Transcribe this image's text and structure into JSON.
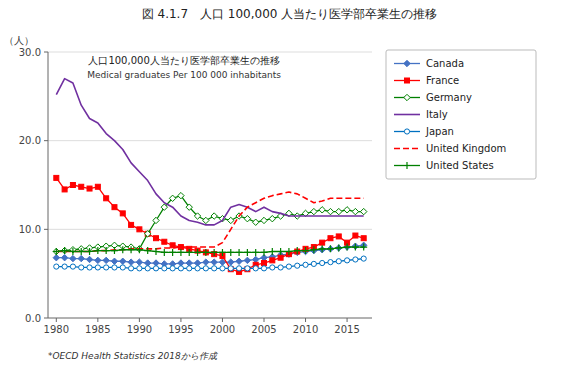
{
  "chart_data": {
    "type": "line",
    "title": "図 4.1.7　人口 100,000 人当たり医学部卒業生の推移",
    "subtitle": "人口100,000人当たり医学部卒業生の推移",
    "annotations": [
      "Medical graduates  Per 100 000 inhabitants",
      "*OECD Health Statistics 2018から作成"
    ],
    "y_label": "（人）",
    "xlim": [
      1979,
      2018
    ],
    "xticks": [
      1980,
      1985,
      1990,
      1995,
      2000,
      2005,
      2010,
      2015
    ],
    "ylim": [
      0,
      30
    ],
    "yticks": [
      {
        "value": 0,
        "label": "0.0"
      },
      {
        "value": 10,
        "label": "10.0"
      },
      {
        "value": 20,
        "label": "20.0"
      },
      {
        "value": 30,
        "label": "30.0"
      }
    ],
    "grid": true,
    "legend": "right",
    "x": [
      1980,
      1981,
      1982,
      1983,
      1984,
      1985,
      1986,
      1987,
      1988,
      1989,
      1990,
      1991,
      1992,
      1993,
      1994,
      1995,
      1996,
      1997,
      1998,
      1999,
      2000,
      2001,
      2002,
      2003,
      2004,
      2005,
      2006,
      2007,
      2008,
      2009,
      2010,
      2011,
      2012,
      2013,
      2014,
      2015,
      2016,
      2017
    ],
    "series": [
      {
        "name": "Canada",
        "color": "#4472c4",
        "marker": "diamond",
        "line_style": "solid",
        "values": [
          6.8,
          6.8,
          6.7,
          6.7,
          6.6,
          6.5,
          6.5,
          6.4,
          6.4,
          6.3,
          6.3,
          6.2,
          6.2,
          6.1,
          6.1,
          6.2,
          6.2,
          6.2,
          6.3,
          6.3,
          6.3,
          6.3,
          6.4,
          6.5,
          6.6,
          6.8,
          6.9,
          7.1,
          7.2,
          7.4,
          7.5,
          7.6,
          7.7,
          7.8,
          7.9,
          8.0,
          8.1,
          8.2
        ]
      },
      {
        "name": "France",
        "color": "#ff0000",
        "marker": "square",
        "line_style": "solid",
        "values": [
          15.8,
          14.5,
          15.0,
          14.8,
          14.6,
          14.8,
          13.5,
          12.5,
          11.8,
          10.5,
          10.0,
          9.5,
          9.0,
          8.6,
          8.2,
          8.0,
          7.8,
          7.6,
          7.4,
          7.2,
          7.0,
          5.5,
          5.2,
          5.5,
          6.0,
          6.2,
          6.5,
          6.8,
          7.2,
          7.5,
          7.8,
          8.0,
          8.5,
          9.0,
          9.2,
          8.5,
          9.3,
          9.0
        ]
      },
      {
        "name": "Germany",
        "color": "#008000",
        "marker": "open-diamond",
        "line_style": "solid",
        "values": [
          7.5,
          7.6,
          7.7,
          7.8,
          7.9,
          8.0,
          8.1,
          8.2,
          8.1,
          8.0,
          7.8,
          9.5,
          11.0,
          12.5,
          13.5,
          13.8,
          12.5,
          11.5,
          11.0,
          11.5,
          11.2,
          11.0,
          11.5,
          11.2,
          10.8,
          11.0,
          11.2,
          11.5,
          11.8,
          11.5,
          11.8,
          12.0,
          12.2,
          12.0,
          12.0,
          12.2,
          12.0,
          12.0
        ]
      },
      {
        "name": "Italy",
        "color": "#7030a0",
        "marker": "none",
        "line_style": "solid",
        "values": [
          25.2,
          27.0,
          26.5,
          24.0,
          22.5,
          22.0,
          20.8,
          20.0,
          19.0,
          17.5,
          16.5,
          15.5,
          14.0,
          13.0,
          12.5,
          11.5,
          11.0,
          10.8,
          10.5,
          10.5,
          11.0,
          12.5,
          12.8,
          12.5,
          12.0,
          12.5,
          12.0,
          11.8,
          11.5,
          11.5,
          11.5,
          11.5,
          11.5,
          11.5,
          11.5,
          11.5,
          11.5,
          11.5
        ]
      },
      {
        "name": "Japan",
        "color": "#0070c0",
        "marker": "open-circle",
        "line_style": "solid",
        "values": [
          5.8,
          5.8,
          5.8,
          5.7,
          5.7,
          5.7,
          5.7,
          5.7,
          5.7,
          5.6,
          5.6,
          5.6,
          5.6,
          5.6,
          5.6,
          5.6,
          5.6,
          5.6,
          5.6,
          5.6,
          5.6,
          5.6,
          5.6,
          5.6,
          5.6,
          5.6,
          5.7,
          5.7,
          5.8,
          5.9,
          6.0,
          6.1,
          6.2,
          6.3,
          6.4,
          6.5,
          6.6,
          6.7
        ]
      },
      {
        "name": "United Kingdom",
        "color": "#ff0000",
        "marker": "none",
        "line_style": "dashed",
        "values": [
          7.5,
          7.5,
          7.5,
          7.5,
          7.5,
          7.6,
          7.6,
          7.7,
          7.7,
          7.8,
          7.8,
          7.8,
          7.8,
          7.9,
          7.9,
          8.0,
          8.0,
          8.0,
          8.0,
          8.0,
          8.5,
          10.0,
          11.5,
          12.5,
          13.0,
          13.5,
          13.8,
          14.0,
          14.2,
          14.0,
          13.5,
          13.0,
          13.2,
          13.5,
          13.5,
          13.5,
          13.5,
          13.5
        ]
      },
      {
        "name": "United States",
        "color": "#008000",
        "marker": "plus",
        "line_style": "solid",
        "values": [
          7.5,
          7.6,
          7.5,
          7.5,
          7.5,
          7.6,
          7.6,
          7.6,
          7.7,
          7.7,
          7.7,
          7.6,
          7.5,
          7.4,
          7.4,
          7.4,
          7.4,
          7.4,
          7.4,
          7.4,
          7.4,
          7.4,
          7.4,
          7.4,
          7.4,
          7.4,
          7.5,
          7.5,
          7.5,
          7.6,
          7.6,
          7.7,
          7.8,
          7.8,
          7.9,
          8.0,
          8.0,
          8.0
        ]
      }
    ]
  }
}
